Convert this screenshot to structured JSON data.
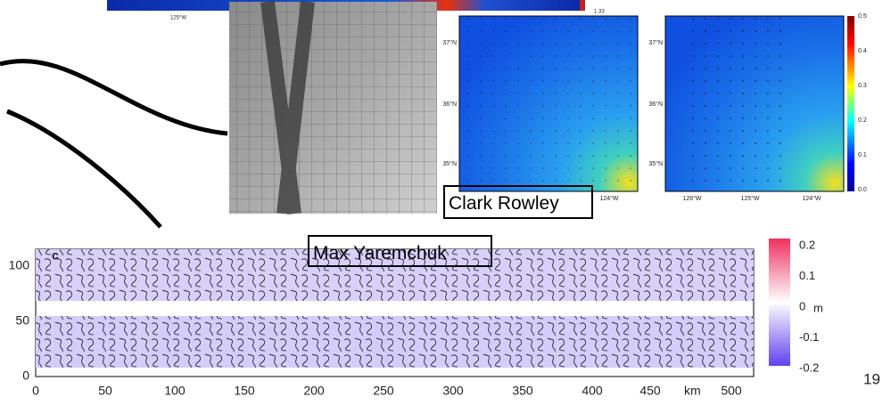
{
  "top_strip": {
    "tick_label": "125°W",
    "colorbar_value": "1.33"
  },
  "map_middle": {
    "lat_labels": [
      "37°N",
      "36°N",
      "35°N"
    ],
    "lon_labels": [
      "124°W"
    ]
  },
  "map_right": {
    "lat_labels": [
      "37°N",
      "36°N",
      "35°N"
    ],
    "lon_labels": [
      "126°W",
      "125°W",
      "124°W"
    ],
    "colorbar_ticks": [
      "0.5",
      "0.4",
      "0.3",
      "0.2",
      "0.1",
      "0.0"
    ]
  },
  "bottom_plot": {
    "panel_label": "c",
    "y_ticks": [
      "100",
      "50",
      "0"
    ],
    "x_ticks": [
      "0",
      "50",
      "100",
      "150",
      "200",
      "250",
      "300",
      "350",
      "400",
      "450",
      "500"
    ],
    "x_unit": "km",
    "colorbar_ticks": [
      "0.2",
      "0.1",
      "0",
      "-0.1",
      "-0.2"
    ],
    "colorbar_unit": "m"
  },
  "annotations": {
    "clark": "Clark Rowley",
    "max": "Max Yaremchuk"
  },
  "page_number": "19"
}
